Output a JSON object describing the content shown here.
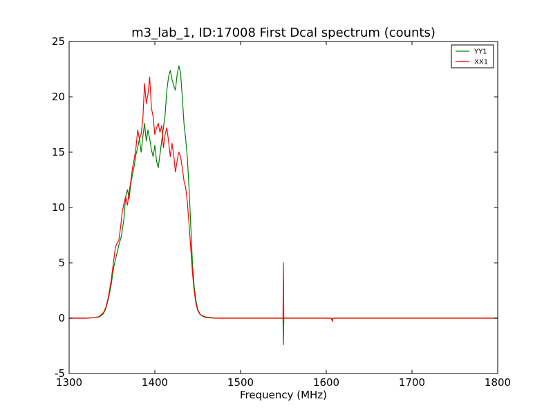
{
  "chart_data": {
    "type": "line",
    "title": "m3_lab_1, ID:17008 First Dcal spectrum (counts)",
    "xlabel": "Frequency (MHz)",
    "ylabel": "",
    "xlim": [
      1300,
      1800
    ],
    "ylim": [
      -5,
      25
    ],
    "xticks": [
      1300,
      1400,
      1500,
      1600,
      1700,
      1800
    ],
    "yticks": [
      -5,
      0,
      5,
      10,
      15,
      20,
      25
    ],
    "grid": false,
    "legend_position": "top-right",
    "series": [
      {
        "name": "YY1",
        "color": "#008000",
        "points": [
          [
            1300,
            0.0
          ],
          [
            1320,
            0.0
          ],
          [
            1330,
            0.05
          ],
          [
            1335,
            0.1
          ],
          [
            1340,
            0.4
          ],
          [
            1343,
            0.9
          ],
          [
            1346,
            1.8
          ],
          [
            1349,
            3.0
          ],
          [
            1352,
            4.6
          ],
          [
            1355,
            5.6
          ],
          [
            1358,
            6.6
          ],
          [
            1361,
            7.4
          ],
          [
            1364,
            9.0
          ],
          [
            1366,
            11.0
          ],
          [
            1368,
            11.6
          ],
          [
            1370,
            10.8
          ],
          [
            1372,
            12.2
          ],
          [
            1374,
            13.0
          ],
          [
            1376,
            13.8
          ],
          [
            1378,
            14.8
          ],
          [
            1380,
            15.4
          ],
          [
            1382,
            16.2
          ],
          [
            1384,
            15.0
          ],
          [
            1386,
            16.4
          ],
          [
            1388,
            17.6
          ],
          [
            1390,
            16.0
          ],
          [
            1392,
            17.0
          ],
          [
            1394,
            16.2
          ],
          [
            1396,
            15.2
          ],
          [
            1398,
            14.6
          ],
          [
            1400,
            15.6
          ],
          [
            1402,
            14.2
          ],
          [
            1404,
            13.6
          ],
          [
            1406,
            14.8
          ],
          [
            1408,
            16.0
          ],
          [
            1410,
            17.2
          ],
          [
            1412,
            18.4
          ],
          [
            1414,
            20.6
          ],
          [
            1416,
            21.8
          ],
          [
            1418,
            22.4
          ],
          [
            1420,
            21.6
          ],
          [
            1422,
            21.0
          ],
          [
            1424,
            20.6
          ],
          [
            1426,
            22.0
          ],
          [
            1428,
            22.8
          ],
          [
            1430,
            22.2
          ],
          [
            1432,
            20.0
          ],
          [
            1434,
            17.6
          ],
          [
            1436,
            16.2
          ],
          [
            1438,
            14.4
          ],
          [
            1440,
            11.6
          ],
          [
            1442,
            8.2
          ],
          [
            1444,
            4.8
          ],
          [
            1446,
            2.8
          ],
          [
            1448,
            1.6
          ],
          [
            1450,
            0.8
          ],
          [
            1453,
            0.35
          ],
          [
            1456,
            0.15
          ],
          [
            1460,
            0.05
          ],
          [
            1470,
            0.0
          ],
          [
            1500,
            0.0
          ],
          [
            1549.5,
            0.0
          ],
          [
            1550,
            -2.4
          ],
          [
            1550.5,
            0.0
          ],
          [
            1606,
            0.0
          ],
          [
            1607,
            -0.1
          ],
          [
            1608,
            0.0
          ],
          [
            1700,
            0.0
          ],
          [
            1800,
            0.0
          ]
        ]
      },
      {
        "name": "XX1",
        "color": "#ff0000",
        "points": [
          [
            1300,
            0.0
          ],
          [
            1320,
            0.0
          ],
          [
            1330,
            0.05
          ],
          [
            1335,
            0.15
          ],
          [
            1340,
            0.5
          ],
          [
            1343,
            1.0
          ],
          [
            1346,
            2.0
          ],
          [
            1349,
            3.4
          ],
          [
            1352,
            5.2
          ],
          [
            1354,
            6.4
          ],
          [
            1356,
            6.8
          ],
          [
            1358,
            7.0
          ],
          [
            1360,
            8.2
          ],
          [
            1362,
            9.6
          ],
          [
            1364,
            10.4
          ],
          [
            1366,
            11.0
          ],
          [
            1368,
            10.2
          ],
          [
            1370,
            11.4
          ],
          [
            1372,
            12.4
          ],
          [
            1374,
            13.6
          ],
          [
            1376,
            14.4
          ],
          [
            1378,
            15.4
          ],
          [
            1380,
            17.0
          ],
          [
            1382,
            16.2
          ],
          [
            1384,
            16.6
          ],
          [
            1386,
            18.0
          ],
          [
            1388,
            21.2
          ],
          [
            1390,
            19.4
          ],
          [
            1392,
            20.2
          ],
          [
            1394,
            21.8
          ],
          [
            1396,
            19.0
          ],
          [
            1398,
            18.2
          ],
          [
            1400,
            16.6
          ],
          [
            1402,
            17.2
          ],
          [
            1404,
            17.6
          ],
          [
            1406,
            16.8
          ],
          [
            1408,
            17.4
          ],
          [
            1410,
            15.4
          ],
          [
            1412,
            16.6
          ],
          [
            1414,
            17.2
          ],
          [
            1416,
            16.0
          ],
          [
            1418,
            14.6
          ],
          [
            1420,
            15.8
          ],
          [
            1422,
            14.8
          ],
          [
            1424,
            13.2
          ],
          [
            1426,
            14.2
          ],
          [
            1428,
            15.0
          ],
          [
            1430,
            14.6
          ],
          [
            1432,
            13.6
          ],
          [
            1434,
            12.4
          ],
          [
            1436,
            11.8
          ],
          [
            1438,
            10.4
          ],
          [
            1440,
            8.4
          ],
          [
            1442,
            6.2
          ],
          [
            1444,
            4.0
          ],
          [
            1446,
            2.4
          ],
          [
            1448,
            1.3
          ],
          [
            1450,
            0.7
          ],
          [
            1453,
            0.3
          ],
          [
            1456,
            0.2
          ],
          [
            1460,
            0.1
          ],
          [
            1466,
            0.05
          ],
          [
            1470,
            0.0
          ],
          [
            1500,
            0.0
          ],
          [
            1549.5,
            0.0
          ],
          [
            1550,
            5.0
          ],
          [
            1550.5,
            0.0
          ],
          [
            1606,
            0.0
          ],
          [
            1607,
            -0.3
          ],
          [
            1608,
            0.0
          ],
          [
            1700,
            0.0
          ],
          [
            1800,
            0.0
          ]
        ]
      }
    ]
  }
}
